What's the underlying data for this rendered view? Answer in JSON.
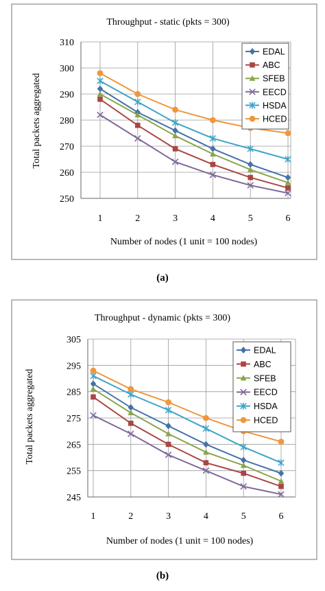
{
  "chart_data": [
    {
      "type": "line",
      "title": "Throughput - static (pkts = 300)",
      "xlabel": "Number of nodes (1 unit = 100 nodes)",
      "ylabel": "Total packets aggregated",
      "x": [
        1,
        2,
        3,
        4,
        5,
        6
      ],
      "xticks": [
        "1",
        "2",
        "3",
        "4",
        "5",
        "6"
      ],
      "ylim": [
        250,
        310
      ],
      "yticks": [
        250,
        260,
        270,
        280,
        290,
        300,
        310
      ],
      "grid": true,
      "legend_position": "top-right",
      "caption": "(a)",
      "series": [
        {
          "name": "EDAL",
          "color": "#4572A7",
          "marker": "diamond",
          "values": [
            292,
            283,
            276,
            269,
            263,
            258
          ]
        },
        {
          "name": "ABC",
          "color": "#AA4643",
          "marker": "square",
          "values": [
            288,
            278,
            269,
            263,
            258,
            254
          ]
        },
        {
          "name": "SFEB",
          "color": "#89A54E",
          "marker": "triangle",
          "values": [
            290,
            282,
            274,
            267,
            261,
            256
          ]
        },
        {
          "name": "EECD",
          "color": "#80699B",
          "marker": "x",
          "values": [
            282,
            273,
            264,
            259,
            255,
            252
          ]
        },
        {
          "name": "HSDA",
          "color": "#3DA4C8",
          "marker": "star",
          "values": [
            295,
            287,
            279,
            273,
            269,
            265
          ]
        },
        {
          "name": "HCED",
          "color": "#F0963C",
          "marker": "circle",
          "values": [
            298,
            290,
            284,
            280,
            277,
            275
          ]
        }
      ]
    },
    {
      "type": "line",
      "title": "Throughput - dynamic (pkts = 300)",
      "xlabel": "Number of nodes (1 unit = 100 nodes)",
      "ylabel": "Total packets aggregated",
      "x": [
        1,
        2,
        3,
        4,
        5,
        6
      ],
      "xticks": [
        "1",
        "2",
        "3",
        "4",
        "5",
        "6"
      ],
      "ylim": [
        245,
        305
      ],
      "yticks": [
        245,
        255,
        265,
        275,
        285,
        295,
        305
      ],
      "grid": true,
      "legend_position": "top-right",
      "caption": "(b)",
      "series": [
        {
          "name": "EDAL",
          "color": "#4572A7",
          "marker": "diamond",
          "values": [
            288,
            279,
            272,
            265,
            259,
            254
          ]
        },
        {
          "name": "ABC",
          "color": "#AA4643",
          "marker": "square",
          "values": [
            283,
            273,
            265,
            258,
            254,
            249
          ]
        },
        {
          "name": "SFEB",
          "color": "#89A54E",
          "marker": "triangle",
          "values": [
            286,
            277,
            269,
            262,
            257,
            251
          ]
        },
        {
          "name": "EECD",
          "color": "#80699B",
          "marker": "x",
          "values": [
            276,
            269,
            261,
            255,
            249,
            246
          ]
        },
        {
          "name": "HSDA",
          "color": "#3DA4C8",
          "marker": "star",
          "values": [
            291,
            284,
            278,
            271,
            264,
            258
          ]
        },
        {
          "name": "HCED",
          "color": "#F0963C",
          "marker": "circle",
          "values": [
            293,
            286,
            281,
            275,
            270,
            266
          ]
        }
      ]
    }
  ]
}
